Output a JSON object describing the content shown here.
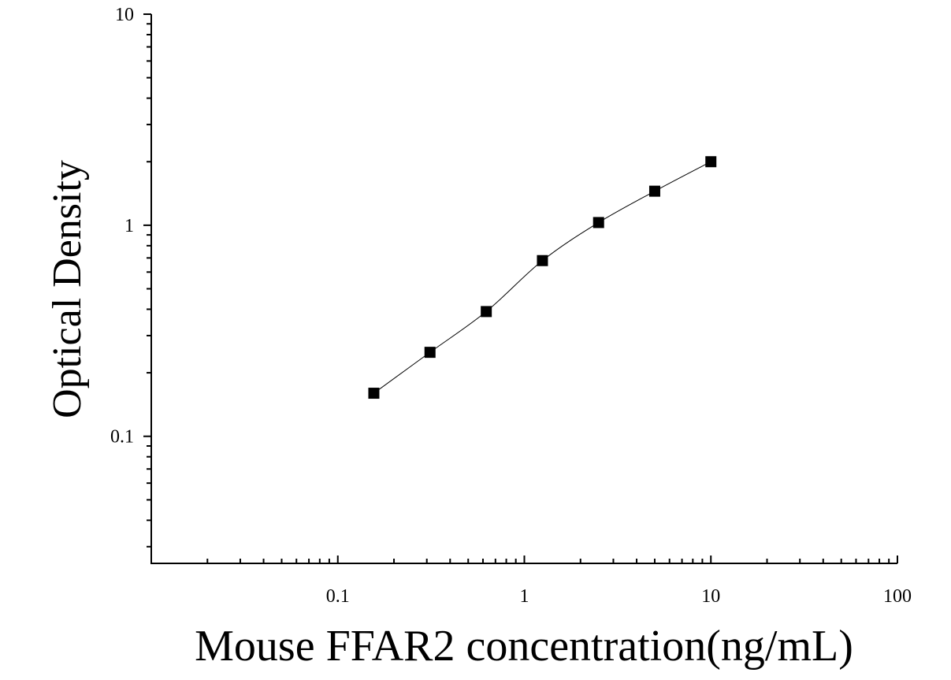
{
  "chart_data": {
    "type": "scatter",
    "title": "",
    "xlabel": "Mouse FFAR2 concentration(ng/mL)",
    "ylabel": "Optical Density",
    "x_scale": "log",
    "y_scale": "log",
    "xlim": [
      0.01,
      100
    ],
    "ylim": [
      0.025,
      10
    ],
    "x_ticks": [
      0.1,
      1,
      10,
      100
    ],
    "x_tick_labels": [
      "0.1",
      "1",
      "10",
      "100"
    ],
    "y_ticks": [
      0.1,
      1,
      10
    ],
    "y_tick_labels": [
      "0.1",
      "1",
      "10"
    ],
    "grid": false,
    "series": [
      {
        "points": [
          {
            "x": 0.156,
            "y": 0.16
          },
          {
            "x": 0.312,
            "y": 0.25
          },
          {
            "x": 0.625,
            "y": 0.39
          },
          {
            "x": 1.25,
            "y": 0.68
          },
          {
            "x": 2.5,
            "y": 1.03
          },
          {
            "x": 5,
            "y": 1.45
          },
          {
            "x": 10,
            "y": 2.0
          }
        ],
        "marker": "square",
        "color": "#000000",
        "fit_line": true
      }
    ]
  }
}
